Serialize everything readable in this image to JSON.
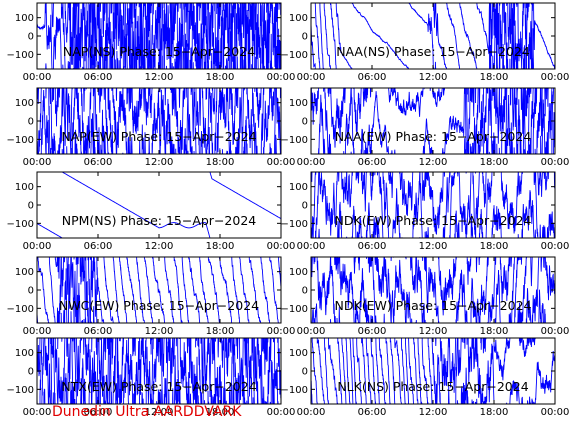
{
  "footer_text": "Dunedin Ultra AARDDVARK",
  "colors": {
    "trace": "#0000ff",
    "axes": "#000000",
    "footer": "#e00000"
  },
  "chart_data": [
    {
      "type": "line",
      "title": "NAP(NS) Phase: 15-Apr-2024",
      "x_ticks": [
        "00:00",
        "06:00",
        "12:00",
        "18:00",
        "00:00"
      ],
      "xlim": [
        0,
        24
      ],
      "y_ticks": [
        "100",
        "0",
        "-100"
      ],
      "ylim": [
        -180,
        180
      ],
      "pattern": {
        "mode": "dense",
        "segments": [
          [
            0,
            0.8,
            0.3
          ],
          [
            0.8,
            3.2,
            2.5
          ],
          [
            3.2,
            24,
            6
          ]
        ]
      }
    },
    {
      "type": "line",
      "title": "NAA(NS) Phase: 15-Apr-2024",
      "x_ticks": [
        "00:00",
        "06:00",
        "12:00",
        "18:00",
        "00:00"
      ],
      "xlim": [
        0,
        24
      ],
      "y_ticks": [
        "100",
        "0",
        "-100"
      ],
      "ylim": [
        -180,
        180
      ],
      "pattern": {
        "mode": "mixed",
        "segments": [
          [
            0,
            3,
            0.8
          ],
          [
            3,
            11.5,
            0.08
          ],
          [
            11.5,
            12.5,
            2
          ],
          [
            12.5,
            17.5,
            0.3
          ],
          [
            17.5,
            22,
            5
          ],
          [
            22,
            24,
            0.15
          ]
        ]
      }
    },
    {
      "type": "line",
      "title": "NAP(EW) Phase: 15-Apr-2024",
      "x_ticks": [
        "00:00",
        "06:00",
        "12:00",
        "18:00",
        "00:00"
      ],
      "xlim": [
        0,
        24
      ],
      "y_ticks": [
        "100",
        "0",
        "-100"
      ],
      "ylim": [
        -180,
        180
      ],
      "pattern": {
        "mode": "dense",
        "segments": [
          [
            0,
            24,
            3.5
          ]
        ]
      }
    },
    {
      "type": "line",
      "title": "NAA(EW) Phase: 15-Apr-2024",
      "x_ticks": [
        "00:00",
        "06:00",
        "12:00",
        "18:00",
        "00:00"
      ],
      "xlim": [
        0,
        24
      ],
      "y_ticks": [
        "100",
        "0",
        "-100"
      ],
      "ylim": [
        -180,
        180
      ],
      "pattern": {
        "mode": "mixed",
        "segments": [
          [
            0,
            6,
            2.5
          ],
          [
            6,
            15,
            1
          ],
          [
            15,
            24,
            4
          ]
        ]
      }
    },
    {
      "type": "line",
      "title": "NPM(NS) Phase: 15-Apr-2024",
      "x_ticks": [
        "00:00",
        "06:00",
        "12:00",
        "18:00",
        "00:00"
      ],
      "xlim": [
        0,
        24
      ],
      "y_ticks": [
        "100",
        "0",
        "-100"
      ],
      "ylim": [
        -180,
        180
      ],
      "pattern": {
        "mode": "drift",
        "segments": [
          [
            0,
            24,
            0.12
          ]
        ]
      }
    },
    {
      "type": "line",
      "title": "NDK(EW) Phase: 15-Apr-2024",
      "x_ticks": [
        "00:00",
        "06:00",
        "12:00",
        "18:00",
        "00:00"
      ],
      "xlim": [
        0,
        24
      ],
      "y_ticks": [
        "100",
        "0",
        "-100"
      ],
      "ylim": [
        -180,
        180
      ],
      "pattern": {
        "mode": "dense",
        "segments": [
          [
            0,
            24,
            2.2
          ]
        ]
      }
    },
    {
      "type": "line",
      "title": "NWC(EW) Phase: 15-Apr-2024",
      "x_ticks": [
        "00:00",
        "06:00",
        "12:00",
        "18:00",
        "00:00"
      ],
      "xlim": [
        0,
        24
      ],
      "y_ticks": [
        "100",
        "0",
        "-100"
      ],
      "ylim": [
        -180,
        180
      ],
      "pattern": {
        "mode": "mixed",
        "segments": [
          [
            0,
            2,
            0.5
          ],
          [
            2,
            6,
            4
          ],
          [
            6,
            24,
            0.5
          ]
        ]
      }
    },
    {
      "type": "line",
      "title": "NDK(EW) Phase: 15-Apr-2024",
      "x_ticks": [
        "00:00",
        "06:00",
        "12:00",
        "18:00",
        "00:00"
      ],
      "xlim": [
        0,
        24
      ],
      "y_ticks": [
        "100",
        "0",
        "-100"
      ],
      "ylim": [
        -180,
        180
      ],
      "pattern": {
        "mode": "dense",
        "segments": [
          [
            0,
            24,
            2.2
          ]
        ]
      }
    },
    {
      "type": "line",
      "title": "NTX(EW) Phase: 15-Apr-2024",
      "x_ticks": [
        "00:00",
        "06:00",
        "12:00",
        "18:00",
        "00:00"
      ],
      "xlim": [
        0,
        24
      ],
      "y_ticks": [
        "100",
        "0",
        "-100"
      ],
      "ylim": [
        -180,
        180
      ],
      "pattern": {
        "mode": "dense",
        "segments": [
          [
            0,
            24,
            4
          ]
        ]
      }
    },
    {
      "type": "line",
      "title": "NLK(NS) Phase: 15-Apr-2024",
      "x_ticks": [
        "00:00",
        "06:00",
        "12:00",
        "18:00",
        "00:00"
      ],
      "xlim": [
        0,
        24
      ],
      "y_ticks": [
        "100",
        "0",
        "-100"
      ],
      "ylim": [
        -180,
        180
      ],
      "pattern": {
        "mode": "mixed",
        "segments": [
          [
            0,
            12,
            0.9
          ],
          [
            12,
            18,
            3
          ],
          [
            18,
            24,
            1.2
          ]
        ]
      }
    }
  ]
}
